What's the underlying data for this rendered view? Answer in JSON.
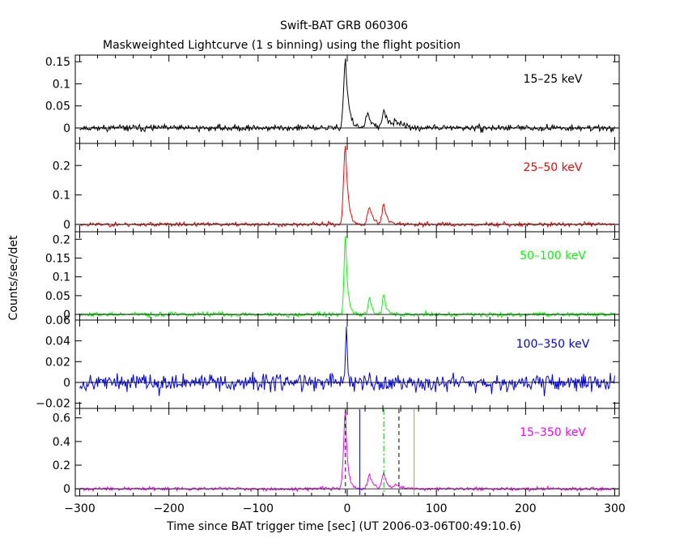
{
  "title": "Swift-BAT GRB 060306",
  "subtitle": "Maskweighted Lightcurve (1 s binning) using the flight position",
  "chart_data": {
    "type": "line",
    "title": "Swift-BAT GRB 060306",
    "subtitle": "Maskweighted Lightcurve (1 s binning) using the flight position",
    "xlabel": "Time since BAT trigger time [sec] (UT 2006-03-06T00:49:10.6)",
    "ylabel": "Counts/sec/det",
    "xlim": [
      -305,
      305
    ],
    "x_ticks": [
      -300,
      -200,
      -100,
      0,
      100,
      200,
      300
    ],
    "x_tick_labels": [
      "−300",
      "−200",
      "−100",
      "0",
      "100",
      "200",
      "300"
    ],
    "binning_sec": 1,
    "panels": [
      {
        "name": "15-25 keV",
        "label": "15–25 keV",
        "color": "#000000",
        "ylim": [
          -0.035,
          0.165
        ],
        "y_ticks": [
          0,
          0.05,
          0.1,
          0.15
        ],
        "y_tick_labels": [
          "0",
          "0.05",
          "0.1",
          "0.15"
        ],
        "noise": 0.006,
        "seed": 11,
        "features": [
          {
            "t0": -2,
            "peak": 0.155,
            "rise": 2,
            "decay": 3.5
          },
          {
            "t0": 23,
            "peak": 0.03,
            "rise": 2,
            "decay": 5
          },
          {
            "t0": 41,
            "peak": 0.035,
            "rise": 2,
            "decay": 6
          },
          {
            "t0": 54,
            "peak": 0.015,
            "rise": 2,
            "decay": 6
          }
        ]
      },
      {
        "name": "25-50 keV",
        "label": "25–50 keV",
        "color": "#ff0000",
        "ylim": [
          -0.025,
          0.275
        ],
        "y_ticks": [
          0,
          0.1,
          0.2
        ],
        "y_tick_labels": [
          "0",
          "0.1",
          "0.2"
        ],
        "noise": 0.006,
        "seed": 23,
        "features": [
          {
            "t0": -2,
            "peak": 0.27,
            "rise": 2,
            "decay": 3
          },
          {
            "t0": 25,
            "peak": 0.06,
            "rise": 2,
            "decay": 4
          },
          {
            "t0": 41,
            "peak": 0.065,
            "rise": 2,
            "decay": 4
          }
        ]
      },
      {
        "name": "50-100 keV",
        "label": "50–100 keV",
        "color": "#00ff00",
        "ylim": [
          -0.015,
          0.22
        ],
        "y_ticks": [
          0,
          0.05,
          0.1,
          0.15,
          0.2
        ],
        "y_tick_labels": [
          "0",
          "0.05",
          "0.1",
          "0.15",
          "0.2"
        ],
        "noise": 0.005,
        "seed": 37,
        "features": [
          {
            "t0": -2,
            "peak": 0.21,
            "rise": 1.5,
            "decay": 2.5
          },
          {
            "t0": 25,
            "peak": 0.05,
            "rise": 1.5,
            "decay": 3
          },
          {
            "t0": 41,
            "peak": 0.055,
            "rise": 1.5,
            "decay": 3
          }
        ]
      },
      {
        "name": "100-350 keV",
        "label": "100–350 keV",
        "color": "#0000ff",
        "ylim": [
          -0.025,
          0.06
        ],
        "y_ticks": [
          -0.02,
          0,
          0.02,
          0.04,
          0.06
        ],
        "y_tick_labels": [
          "−0.02",
          "0",
          "0.02",
          "0.04",
          "0.06"
        ],
        "noise": 0.007,
        "seed": 53,
        "features": [
          {
            "t0": -1,
            "peak": 0.055,
            "rise": 1,
            "decay": 1.5
          }
        ]
      },
      {
        "name": "15-350 keV",
        "label": "15–350 keV",
        "color": "#ff00ff",
        "ylim": [
          -0.06,
          0.68
        ],
        "y_ticks": [
          0,
          0.2,
          0.4,
          0.6
        ],
        "y_tick_labels": [
          "0",
          "0.2",
          "0.4",
          "0.6"
        ],
        "noise": 0.012,
        "seed": 71,
        "features": [
          {
            "t0": -2,
            "peak": 0.65,
            "rise": 2,
            "decay": 2.5
          },
          {
            "t0": 25,
            "peak": 0.12,
            "rise": 2,
            "decay": 4
          },
          {
            "t0": 41,
            "peak": 0.13,
            "rise": 2,
            "decay": 4
          },
          {
            "t0": 54,
            "peak": 0.03,
            "rise": 2,
            "decay": 6
          }
        ],
        "markers": [
          {
            "t": -2,
            "color": "#000000",
            "style": "dash"
          },
          {
            "t": 14,
            "color": "#0000ff",
            "style": "solid"
          },
          {
            "t": 41,
            "color": "#00cc00",
            "style": "dashdot"
          },
          {
            "t": 58,
            "color": "#000000",
            "style": "dash"
          },
          {
            "t": 75,
            "color": "#ff8800",
            "style": "solid"
          }
        ]
      }
    ]
  }
}
